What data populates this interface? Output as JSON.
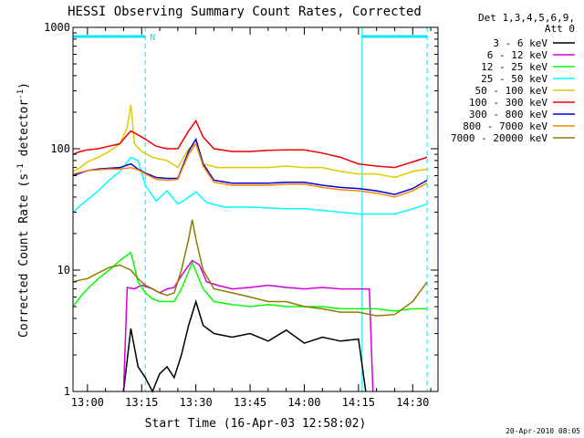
{
  "chart_data": {
    "type": "line",
    "title": "HESSI Observing Summary Count Rates, Corrected",
    "xlabel": "Start Time (16-Apr-03 12:58:02)",
    "ylabel": "Corrected Count Rate (s",
    "ylabel_sup1": "-1",
    "ylabel_mid": " detector",
    "ylabel_sup2": "-1",
    "ylabel_end": ")",
    "ylog": true,
    "ylim": [
      1,
      1000
    ],
    "xlim": [
      "12:56",
      "14:37"
    ],
    "x_ticks": [
      "13:00",
      "13:15",
      "13:30",
      "13:45",
      "14:00",
      "14:15",
      "14:30"
    ],
    "y_ticks": [
      "1",
      "10",
      "100",
      "1000"
    ],
    "legend_header": [
      "Det 1,3,4,5,6,9,",
      "Att 0"
    ],
    "legend_position": "right",
    "footer_stamp": "20-Apr-2010 08:05",
    "night_marker_label": "N",
    "night_bars": [
      [
        "12:56",
        "13:16"
      ],
      [
        "14:16",
        "14:34"
      ]
    ],
    "dashed_markers": [
      "13:16",
      "14:34"
    ],
    "solid_markers": [
      "14:16"
    ],
    "series": [
      {
        "name": "3 - 6 keV",
        "color": "#000000",
        "points": [
          [
            "13:10",
            1.0
          ],
          [
            "13:12",
            3.3
          ],
          [
            "13:14",
            1.6
          ],
          [
            "13:16",
            1.3
          ],
          [
            "13:18",
            1.0
          ],
          [
            "13:20",
            1.4
          ],
          [
            "13:22",
            1.6
          ],
          [
            "13:24",
            1.3
          ],
          [
            "13:26",
            2.0
          ],
          [
            "13:28",
            3.5
          ],
          [
            "13:30",
            5.5
          ],
          [
            "13:32",
            3.5
          ],
          [
            "13:35",
            3.0
          ],
          [
            "13:40",
            2.8
          ],
          [
            "13:45",
            3.0
          ],
          [
            "13:50",
            2.6
          ],
          [
            "13:55",
            3.2
          ],
          [
            "14:00",
            2.5
          ],
          [
            "14:05",
            2.8
          ],
          [
            "14:10",
            2.6
          ],
          [
            "14:15",
            2.7
          ],
          [
            "14:17",
            1.0
          ]
        ]
      },
      {
        "name": "6 - 12 keV",
        "color": "#d400d4",
        "points": [
          [
            "13:10",
            1.0
          ],
          [
            "13:11",
            7.2
          ],
          [
            "13:13",
            7.0
          ],
          [
            "13:15",
            7.5
          ],
          [
            "13:18",
            7.0
          ],
          [
            "13:20",
            6.5
          ],
          [
            "13:22",
            7.0
          ],
          [
            "13:24",
            7.2
          ],
          [
            "13:26",
            9.0
          ],
          [
            "13:29",
            12.0
          ],
          [
            "13:31",
            11.0
          ],
          [
            "13:33",
            8.0
          ],
          [
            "13:36",
            7.5
          ],
          [
            "13:40",
            7.0
          ],
          [
            "13:45",
            7.2
          ],
          [
            "13:50",
            7.5
          ],
          [
            "13:55",
            7.2
          ],
          [
            "14:00",
            7.0
          ],
          [
            "14:05",
            7.2
          ],
          [
            "14:10",
            7.0
          ],
          [
            "14:15",
            7.0
          ],
          [
            "14:18",
            7.0
          ],
          [
            "14:19",
            1.0
          ]
        ]
      },
      {
        "name": "12 - 25 keV",
        "color": "#00ff00",
        "points": [
          [
            "12:56",
            5.0
          ],
          [
            "12:58",
            6.0
          ],
          [
            "13:00",
            7.0
          ],
          [
            "13:03",
            8.5
          ],
          [
            "13:06",
            10.0
          ],
          [
            "13:09",
            12.0
          ],
          [
            "13:12",
            14.0
          ],
          [
            "13:14",
            8.0
          ],
          [
            "13:16",
            6.5
          ],
          [
            "13:18",
            5.8
          ],
          [
            "13:20",
            5.5
          ],
          [
            "13:24",
            5.5
          ],
          [
            "13:26",
            7.0
          ],
          [
            "13:29",
            11.5
          ],
          [
            "13:32",
            7.0
          ],
          [
            "13:35",
            5.5
          ],
          [
            "13:40",
            5.2
          ],
          [
            "13:45",
            5.0
          ],
          [
            "13:50",
            5.2
          ],
          [
            "13:55",
            5.0
          ],
          [
            "14:00",
            5.0
          ],
          [
            "14:05",
            5.0
          ],
          [
            "14:10",
            4.8
          ],
          [
            "14:15",
            4.8
          ],
          [
            "14:20",
            4.8
          ],
          [
            "14:25",
            4.6
          ],
          [
            "14:30",
            4.8
          ],
          [
            "14:34",
            4.8
          ]
        ]
      },
      {
        "name": "25 - 50 keV",
        "color": "#00ffff",
        "points": [
          [
            "12:56",
            30.0
          ],
          [
            "12:58",
            34.0
          ],
          [
            "13:00",
            38.0
          ],
          [
            "13:03",
            45.0
          ],
          [
            "13:06",
            55.0
          ],
          [
            "13:09",
            65.0
          ],
          [
            "13:12",
            85.0
          ],
          [
            "13:14",
            80.0
          ],
          [
            "13:16",
            50.0
          ],
          [
            "13:19",
            37.0
          ],
          [
            "13:22",
            45.0
          ],
          [
            "13:25",
            35.0
          ],
          [
            "13:27",
            38.0
          ],
          [
            "13:30",
            44.0
          ],
          [
            "13:33",
            36.0
          ],
          [
            "13:38",
            33.0
          ],
          [
            "13:45",
            33.0
          ],
          [
            "13:55",
            32.0
          ],
          [
            "14:00",
            32.0
          ],
          [
            "14:05",
            31.0
          ],
          [
            "14:10",
            30.0
          ],
          [
            "14:15",
            29.0
          ],
          [
            "14:20",
            29.0
          ],
          [
            "14:25",
            29.0
          ],
          [
            "14:30",
            32.0
          ],
          [
            "14:34",
            35.0
          ]
        ]
      },
      {
        "name": "50 - 100 keV",
        "color": "#ddcc00",
        "points": [
          [
            "12:56",
            65.0
          ],
          [
            "12:58",
            70.0
          ],
          [
            "13:00",
            78.0
          ],
          [
            "13:03",
            85.0
          ],
          [
            "13:06",
            95.0
          ],
          [
            "13:09",
            110.0
          ],
          [
            "13:11",
            150.0
          ],
          [
            "13:12",
            230.0
          ],
          [
            "13:13",
            110.0
          ],
          [
            "13:15",
            95.0
          ],
          [
            "13:18",
            85.0
          ],
          [
            "13:22",
            80.0
          ],
          [
            "13:25",
            70.0
          ],
          [
            "13:28",
            100.0
          ],
          [
            "13:30",
            110.0
          ],
          [
            "13:32",
            75.0
          ],
          [
            "13:36",
            70.0
          ],
          [
            "13:40",
            70.0
          ],
          [
            "13:45",
            70.0
          ],
          [
            "13:50",
            70.0
          ],
          [
            "13:55",
            72.0
          ],
          [
            "14:00",
            70.0
          ],
          [
            "14:05",
            70.0
          ],
          [
            "14:10",
            65.0
          ],
          [
            "14:15",
            62.0
          ],
          [
            "14:20",
            62.0
          ],
          [
            "14:25",
            58.0
          ],
          [
            "14:30",
            65.0
          ],
          [
            "14:34",
            68.0
          ]
        ]
      },
      {
        "name": "100 - 300 keV",
        "color": "#ee0000",
        "points": [
          [
            "12:56",
            90.0
          ],
          [
            "12:58",
            95.0
          ],
          [
            "13:00",
            98.0
          ],
          [
            "13:03",
            100.0
          ],
          [
            "13:06",
            105.0
          ],
          [
            "13:09",
            110.0
          ],
          [
            "13:11",
            130.0
          ],
          [
            "13:12",
            140.0
          ],
          [
            "13:14",
            130.0
          ],
          [
            "13:16",
            120.0
          ],
          [
            "13:19",
            105.0
          ],
          [
            "13:22",
            100.0
          ],
          [
            "13:25",
            100.0
          ],
          [
            "13:28",
            140.0
          ],
          [
            "13:30",
            170.0
          ],
          [
            "13:32",
            125.0
          ],
          [
            "13:35",
            100.0
          ],
          [
            "13:40",
            95.0
          ],
          [
            "13:45",
            95.0
          ],
          [
            "13:50",
            97.0
          ],
          [
            "13:55",
            98.0
          ],
          [
            "14:00",
            98.0
          ],
          [
            "14:05",
            92.0
          ],
          [
            "14:10",
            85.0
          ],
          [
            "14:15",
            75.0
          ],
          [
            "14:20",
            72.0
          ],
          [
            "14:25",
            70.0
          ],
          [
            "14:30",
            78.0
          ],
          [
            "14:34",
            85.0
          ]
        ]
      },
      {
        "name": "300 - 800 keV",
        "color": "#0000dd",
        "points": [
          [
            "12:56",
            60.0
          ],
          [
            "12:58",
            63.0
          ],
          [
            "13:00",
            66.0
          ],
          [
            "13:03",
            68.0
          ],
          [
            "13:06",
            69.0
          ],
          [
            "13:09",
            70.0
          ],
          [
            "13:12",
            75.0
          ],
          [
            "13:14",
            68.0
          ],
          [
            "13:16",
            63.0
          ],
          [
            "13:19",
            58.0
          ],
          [
            "13:22",
            57.0
          ],
          [
            "13:25",
            57.0
          ],
          [
            "13:28",
            95.0
          ],
          [
            "13:30",
            120.0
          ],
          [
            "13:32",
            75.0
          ],
          [
            "13:35",
            55.0
          ],
          [
            "13:40",
            52.0
          ],
          [
            "13:45",
            52.0
          ],
          [
            "13:50",
            52.0
          ],
          [
            "13:55",
            53.0
          ],
          [
            "14:00",
            53.0
          ],
          [
            "14:05",
            50.0
          ],
          [
            "14:10",
            48.0
          ],
          [
            "14:15",
            47.0
          ],
          [
            "14:20",
            45.0
          ],
          [
            "14:25",
            42.0
          ],
          [
            "14:30",
            47.0
          ],
          [
            "14:34",
            55.0
          ]
        ]
      },
      {
        "name": "800 - 7000 keV",
        "color": "#ff8800",
        "points": [
          [
            "12:56",
            62.0
          ],
          [
            "12:58",
            64.0
          ],
          [
            "13:00",
            66.0
          ],
          [
            "13:03",
            67.0
          ],
          [
            "13:06",
            68.0
          ],
          [
            "13:09",
            68.0
          ],
          [
            "13:12",
            70.0
          ],
          [
            "13:14",
            67.0
          ],
          [
            "13:16",
            62.0
          ],
          [
            "13:19",
            56.0
          ],
          [
            "13:22",
            55.0
          ],
          [
            "13:25",
            56.0
          ],
          [
            "13:28",
            90.0
          ],
          [
            "13:30",
            110.0
          ],
          [
            "13:32",
            72.0
          ],
          [
            "13:35",
            53.0
          ],
          [
            "13:40",
            50.0
          ],
          [
            "13:45",
            50.0
          ],
          [
            "13:50",
            50.0
          ],
          [
            "13:55",
            51.0
          ],
          [
            "14:00",
            51.0
          ],
          [
            "14:05",
            48.0
          ],
          [
            "14:10",
            46.0
          ],
          [
            "14:15",
            45.0
          ],
          [
            "14:20",
            43.0
          ],
          [
            "14:25",
            40.0
          ],
          [
            "14:30",
            45.0
          ],
          [
            "14:34",
            52.0
          ]
        ]
      },
      {
        "name": "7000 - 20000 keV",
        "color": "#8b7a00",
        "points": [
          [
            "12:56",
            8.0
          ],
          [
            "12:58",
            8.3
          ],
          [
            "13:00",
            8.5
          ],
          [
            "13:03",
            9.5
          ],
          [
            "13:06",
            10.5
          ],
          [
            "13:09",
            11.0
          ],
          [
            "13:12",
            10.0
          ],
          [
            "13:14",
            8.5
          ],
          [
            "13:16",
            7.5
          ],
          [
            "13:18",
            7.0
          ],
          [
            "13:20",
            6.5
          ],
          [
            "13:22",
            6.2
          ],
          [
            "13:24",
            6.5
          ],
          [
            "13:26",
            10.0
          ],
          [
            "13:28",
            18.0
          ],
          [
            "13:29",
            26.0
          ],
          [
            "13:30",
            18.0
          ],
          [
            "13:32",
            10.0
          ],
          [
            "13:35",
            7.0
          ],
          [
            "13:40",
            6.5
          ],
          [
            "13:45",
            6.0
          ],
          [
            "13:50",
            5.5
          ],
          [
            "13:55",
            5.5
          ],
          [
            "14:00",
            5.0
          ],
          [
            "14:05",
            4.8
          ],
          [
            "14:10",
            4.5
          ],
          [
            "14:15",
            4.5
          ],
          [
            "14:20",
            4.2
          ],
          [
            "14:25",
            4.3
          ],
          [
            "14:30",
            5.5
          ],
          [
            "14:34",
            8.0
          ]
        ]
      }
    ]
  }
}
